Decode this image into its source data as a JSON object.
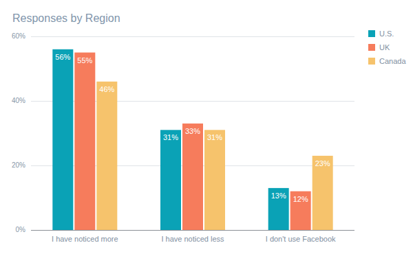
{
  "chart_data": {
    "type": "bar",
    "title": "Responses by Region",
    "categories": [
      "I have noticed more",
      "I have noticed less",
      "I don't use Facebook"
    ],
    "series": [
      {
        "name": "U.S.",
        "color": "#0aa2b6",
        "values": [
          56,
          31,
          13
        ],
        "value_labels": [
          "56%",
          "31%",
          "13%"
        ]
      },
      {
        "name": "UK",
        "color": "#f67c5c",
        "values": [
          55,
          33,
          12
        ],
        "value_labels": [
          "55%",
          "33%",
          "12%"
        ]
      },
      {
        "name": "Canada",
        "color": "#f6c36c",
        "values": [
          46,
          31,
          23
        ],
        "value_labels": [
          "46%",
          "31%",
          "23%"
        ]
      }
    ],
    "ylim": [
      0,
      60
    ],
    "yticks": [
      {
        "value": 0,
        "label": "0%"
      },
      {
        "value": 20,
        "label": "20%"
      },
      {
        "value": 40,
        "label": "40%"
      },
      {
        "value": 60,
        "label": "60%"
      }
    ],
    "grid": true,
    "data_labels": true,
    "legend": "right"
  }
}
